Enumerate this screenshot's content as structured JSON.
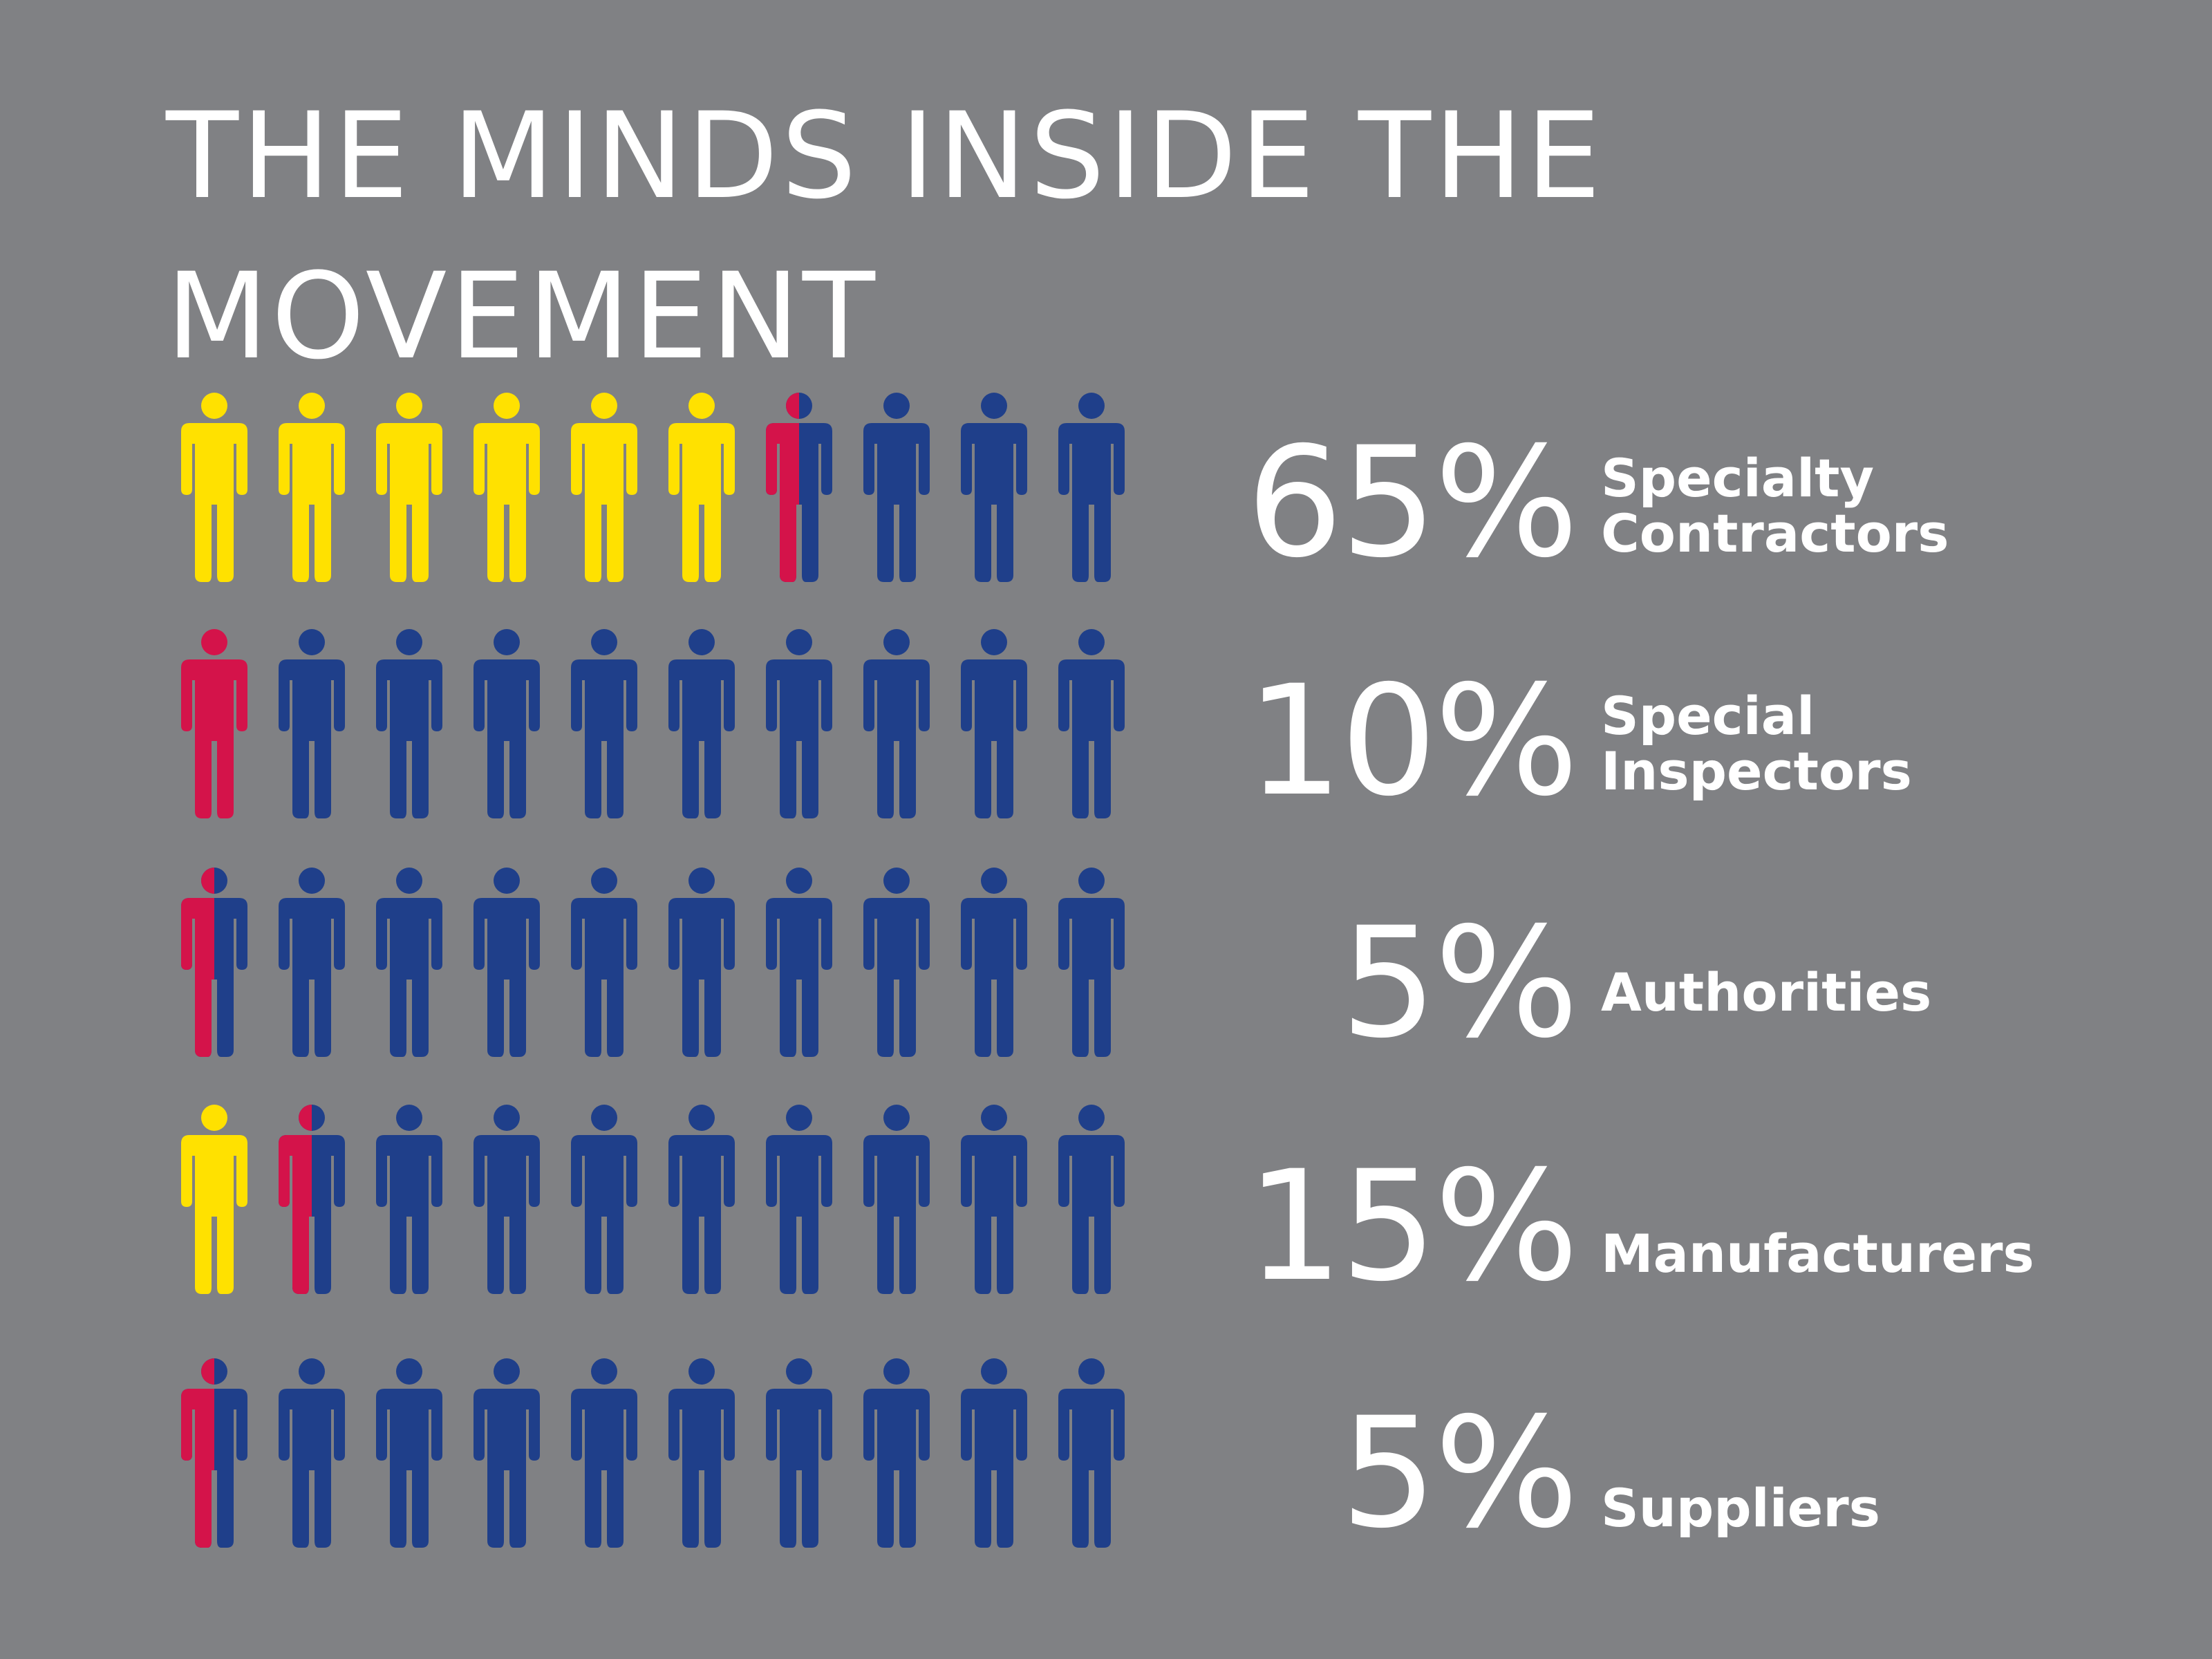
{
  "title": {
    "line1": "THE MINDS INSIDE THE",
    "line2": "MOVEMENT"
  },
  "colors": {
    "background": "#808184",
    "highlight": "#ffe100",
    "partial": "#d4134a",
    "base": "#1f3f8a",
    "text": "#ffffff"
  },
  "chart_data": {
    "type": "pictograph",
    "icons_per_row": 10,
    "rows": [
      {
        "value": 65,
        "pct_label": "65%",
        "label_lines": [
          "Specialty",
          "Contractors"
        ]
      },
      {
        "value": 10,
        "pct_label": "10%",
        "label_lines": [
          "Special",
          "Inspectors"
        ]
      },
      {
        "value": 5,
        "pct_label": "5%",
        "label_lines": [
          "Authorities"
        ]
      },
      {
        "value": 15,
        "pct_label": "15%",
        "label_lines": [
          "Manufacturers"
        ]
      },
      {
        "value": 5,
        "pct_label": "5%",
        "label_lines": [
          "Suppliers"
        ]
      }
    ]
  }
}
